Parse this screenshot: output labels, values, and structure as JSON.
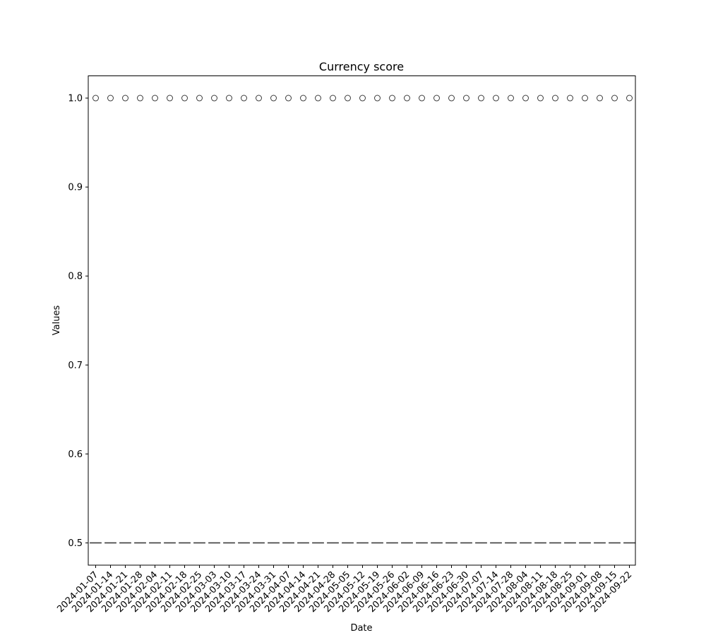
{
  "chart_data": {
    "type": "box",
    "title": "Currency score",
    "xlabel": "Date",
    "ylabel": "Values",
    "ylim": [
      0.475,
      1.025
    ],
    "yticks": [
      0.5,
      0.6,
      0.7,
      0.8,
      0.9,
      1.0
    ],
    "ytick_labels": [
      "0.5",
      "0.6",
      "0.7",
      "0.8",
      "0.9",
      "1.0"
    ],
    "categories": [
      "2024-01-07",
      "2024-01-14",
      "2024-01-21",
      "2024-01-28",
      "2024-02-04",
      "2024-02-11",
      "2024-02-18",
      "2024-02-25",
      "2024-03-03",
      "2024-03-10",
      "2024-03-17",
      "2024-03-24",
      "2024-03-31",
      "2024-04-07",
      "2024-04-14",
      "2024-04-21",
      "2024-04-28",
      "2024-05-05",
      "2024-05-12",
      "2024-05-19",
      "2024-05-26",
      "2024-06-02",
      "2024-06-09",
      "2024-06-16",
      "2024-06-23",
      "2024-06-30",
      "2024-07-07",
      "2024-07-14",
      "2024-07-28",
      "2024-08-04",
      "2024-08-11",
      "2024-08-18",
      "2024-08-25",
      "2024-09-01",
      "2024-09-08",
      "2024-09-15",
      "2024-09-22"
    ],
    "median": 0.5,
    "outlier": 1.0,
    "grid": false,
    "colors": {
      "box": "#3d3d3d",
      "outlier_edge": "#3d3d3d",
      "axes": "#000000"
    }
  }
}
